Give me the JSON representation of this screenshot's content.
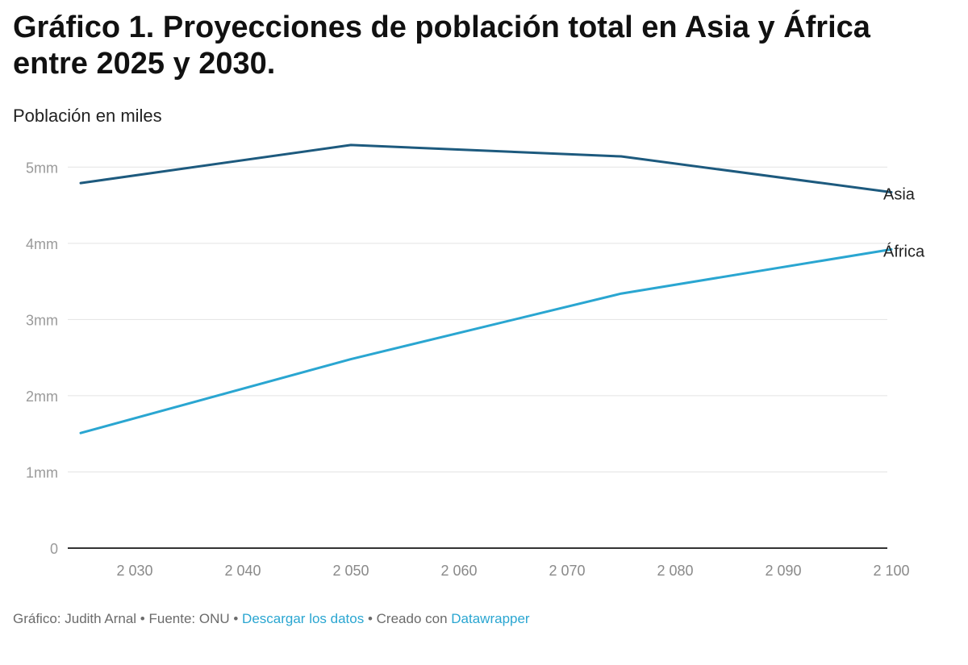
{
  "header": {
    "title": "Gráfico 1. Proyecciones de población total en Asia y África entre 2025 y 2030.",
    "subtitle": "Población en miles"
  },
  "chart_data": {
    "type": "line",
    "title": "Gráfico 1. Proyecciones de población total en Asia y África entre 2025 y 2030.",
    "ylabel": "Población en miles",
    "xlabel": "",
    "xlim": [
      2025,
      2100
    ],
    "ylim": [
      0,
      5500
    ],
    "x_ticks": [
      2030,
      2040,
      2050,
      2060,
      2070,
      2080,
      2090,
      2100
    ],
    "x_tick_labels": [
      "2 030",
      "2 040",
      "2 050",
      "2 060",
      "2 070",
      "2 080",
      "2 090",
      "2 100"
    ],
    "y_ticks": [
      0,
      1000,
      2000,
      3000,
      4000,
      5000
    ],
    "y_tick_labels": [
      "0",
      "1mm",
      "2mm",
      "3mm",
      "4mm",
      "5mm"
    ],
    "grid": true,
    "legend": "direct labels at line ends (right)",
    "series": [
      {
        "name": "Asia",
        "color": "#1d5a7e",
        "points": [
          [
            2025,
            4790
          ],
          [
            2050,
            5290
          ],
          [
            2075,
            5140
          ],
          [
            2100,
            4670
          ]
        ]
      },
      {
        "name": "África",
        "color": "#2aa6d1",
        "points": [
          [
            2025,
            1510
          ],
          [
            2050,
            2480
          ],
          [
            2075,
            3340
          ],
          [
            2100,
            3920
          ]
        ]
      }
    ]
  },
  "footer": {
    "credit": "Gráfico: Judith Arnal",
    "separator": " • ",
    "source": "Fuente: ONU",
    "download_label": "Descargar los datos",
    "created_with": "Creado con",
    "tool_name": "Datawrapper"
  }
}
